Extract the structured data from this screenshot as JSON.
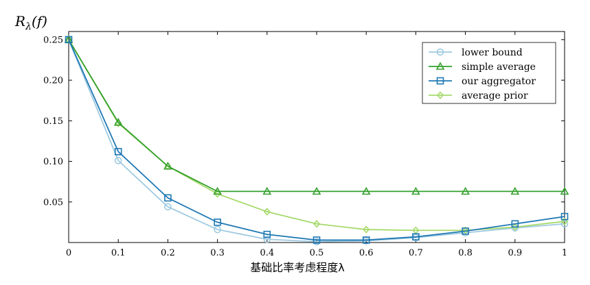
{
  "chart_data": {
    "type": "line",
    "title": "",
    "xlabel": "基础比率考虑程度λ",
    "ylabel": "R_λ(f)",
    "ylabel_main": "R",
    "ylabel_sub": "λ",
    "ylabel_rest": "(f)",
    "xlim": [
      0,
      1
    ],
    "ylim": [
      0,
      0.26
    ],
    "x": [
      0,
      0.1,
      0.2,
      0.3,
      0.4,
      0.5,
      0.6,
      0.7,
      0.8,
      0.9,
      1.0
    ],
    "x_ticks": [
      "0",
      "0.1",
      "0.2",
      "0.3",
      "0.4",
      "0.5",
      "0.6",
      "0.7",
      "0.8",
      "0.9",
      "1"
    ],
    "y_ticks": [
      "0.05",
      "0.10",
      "0.15",
      "0.20",
      "0.25"
    ],
    "y_tick_values": [
      0.05,
      0.1,
      0.15,
      0.2,
      0.25
    ],
    "legend_position": "top-right",
    "grid": false,
    "series": [
      {
        "name": "lower bound",
        "marker": "circle",
        "color": "#9ecae1",
        "values": [
          0.25,
          0.101,
          0.044,
          0.016,
          0.004,
          0.001,
          0.002,
          0.006,
          0.012,
          0.018,
          0.023
        ]
      },
      {
        "name": "simple average",
        "marker": "triangle",
        "color": "#33a02c",
        "values": [
          0.25,
          0.148,
          0.094,
          0.063,
          0.063,
          0.063,
          0.063,
          0.063,
          0.063,
          0.063,
          0.063
        ]
      },
      {
        "name": "our aggregator",
        "marker": "square",
        "color": "#1f78b4",
        "values": [
          0.25,
          0.112,
          0.055,
          0.025,
          0.01,
          0.003,
          0.003,
          0.007,
          0.014,
          0.023,
          0.032
        ]
      },
      {
        "name": "average prior",
        "marker": "diamond",
        "color": "#a6d96a",
        "values": [
          0.25,
          0.147,
          0.094,
          0.06,
          0.038,
          0.023,
          0.016,
          0.015,
          0.015,
          0.019,
          0.026
        ]
      }
    ]
  }
}
